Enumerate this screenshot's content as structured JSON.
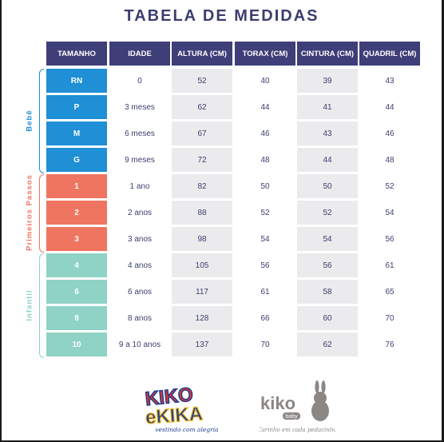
{
  "title": "TABELA DE MEDIDAS",
  "headers": [
    "TAMANHO",
    "IDADE",
    "ALTURA (CM)",
    "TORAX (CM)",
    "CINTURA (CM)",
    "QUADRIL (CM)"
  ],
  "groups": [
    {
      "label": "Bebê",
      "color": "#1f8fd6",
      "start": 0,
      "count": 4
    },
    {
      "label": "Primeiros Passos",
      "color": "#ef7560",
      "start": 4,
      "count": 3
    },
    {
      "label": "Infantil",
      "color": "#8fd3c6",
      "start": 7,
      "count": 4
    }
  ],
  "rows": [
    {
      "tamanho": "RN",
      "idade": "0",
      "altura": "52",
      "torax": "40",
      "cintura": "39",
      "quadril": "43"
    },
    {
      "tamanho": "P",
      "idade": "3 meses",
      "altura": "62",
      "torax": "44",
      "cintura": "41",
      "quadril": "44"
    },
    {
      "tamanho": "M",
      "idade": "6 meses",
      "altura": "67",
      "torax": "46",
      "cintura": "43",
      "quadril": "46"
    },
    {
      "tamanho": "G",
      "idade": "9 meses",
      "altura": "72",
      "torax": "48",
      "cintura": "44",
      "quadril": "48"
    },
    {
      "tamanho": "1",
      "idade": "1 ano",
      "altura": "82",
      "torax": "50",
      "cintura": "50",
      "quadril": "52"
    },
    {
      "tamanho": "2",
      "idade": "2 anos",
      "altura": "88",
      "torax": "52",
      "cintura": "52",
      "quadril": "54"
    },
    {
      "tamanho": "3",
      "idade": "3 anos",
      "altura": "98",
      "torax": "54",
      "cintura": "54",
      "quadril": "56"
    },
    {
      "tamanho": "4",
      "idade": "4 anos",
      "altura": "105",
      "torax": "56",
      "cintura": "56",
      "quadril": "61"
    },
    {
      "tamanho": "6",
      "idade": "6 anos",
      "altura": "117",
      "torax": "61",
      "cintura": "58",
      "quadril": "65"
    },
    {
      "tamanho": "8",
      "idade": "8 anos",
      "altura": "128",
      "torax": "66",
      "cintura": "60",
      "quadril": "70"
    },
    {
      "tamanho": "10",
      "idade": "9 a 10 anos",
      "altura": "137",
      "torax": "70",
      "cintura": "62",
      "quadril": "76"
    }
  ],
  "logos": {
    "kikokika": {
      "name": "KIKO e KIKA",
      "tagline": "vestindo com alegria"
    },
    "kikobaby": {
      "name": "kiko",
      "sub": "baby",
      "tagline": "Carinho em cada pedacinho"
    }
  },
  "colors": {
    "header": "#3e3e78",
    "text": "#3b3e6e",
    "zebra": "#ebebed"
  }
}
